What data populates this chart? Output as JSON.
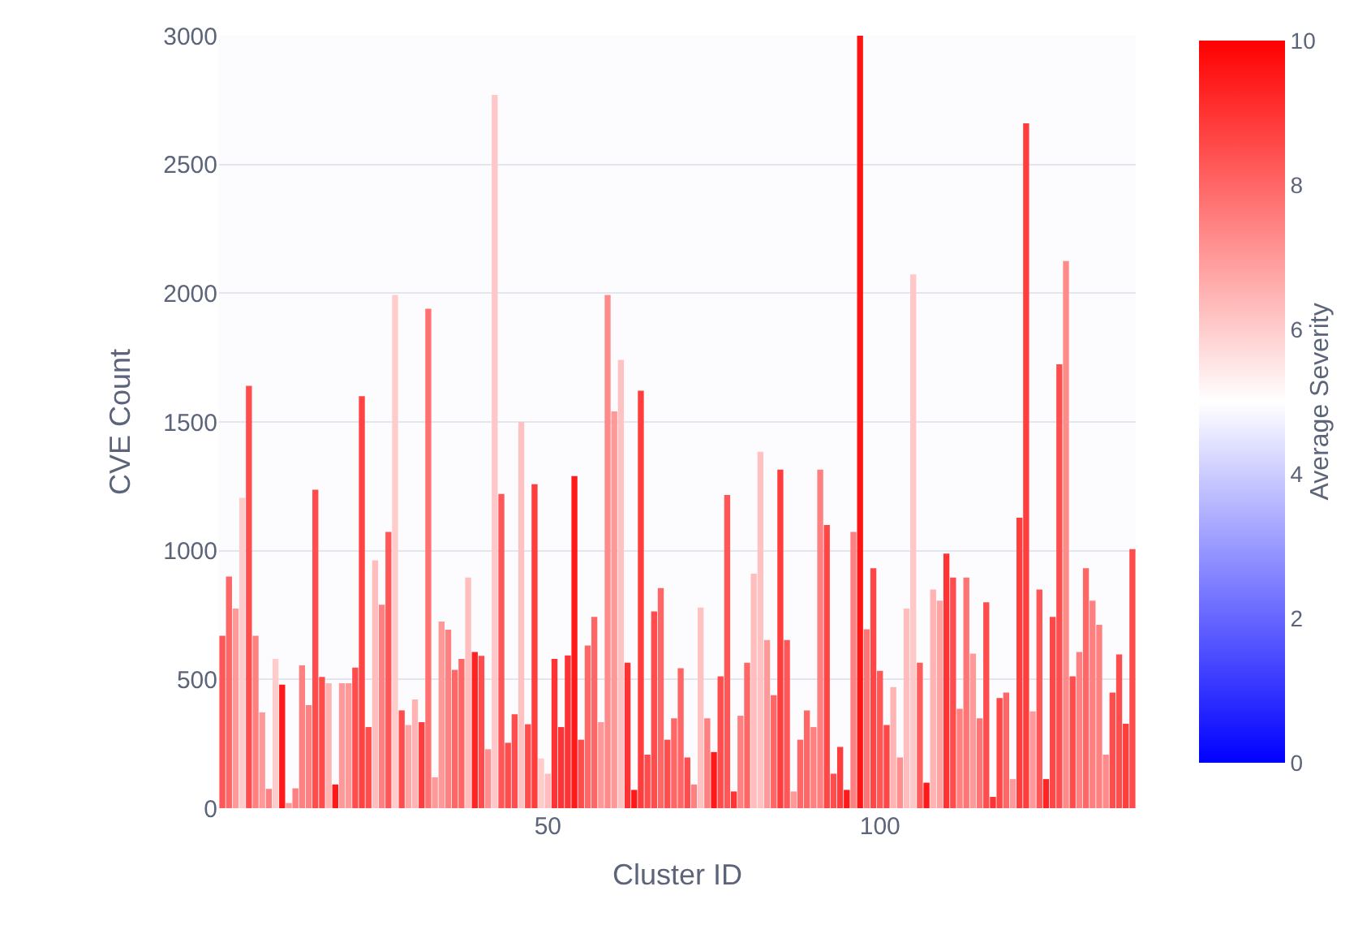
{
  "chart_data": {
    "type": "bar",
    "xlabel": "Cluster ID",
    "ylabel": "CVE Count",
    "clabel": "Average Severity",
    "x": [
      1,
      2,
      3,
      4,
      5,
      6,
      7,
      8,
      9,
      10,
      11,
      12,
      13,
      14,
      15,
      16,
      17,
      18,
      19,
      20,
      21,
      22,
      23,
      24,
      25,
      26,
      27,
      28,
      29,
      30,
      31,
      32,
      33,
      34,
      35,
      36,
      37,
      38,
      39,
      40,
      41,
      42,
      43,
      44,
      45,
      46,
      47,
      48,
      49,
      50,
      51,
      52,
      53,
      54,
      55,
      56,
      57,
      58,
      59,
      60,
      61,
      62,
      63,
      64,
      65,
      66,
      67,
      68,
      69,
      70,
      71,
      72,
      73,
      74,
      75,
      76,
      77,
      78,
      79,
      80,
      81,
      82,
      83,
      84,
      85,
      86,
      87,
      88,
      89,
      90,
      91,
      92,
      93,
      94,
      95,
      96,
      97,
      98,
      99,
      100,
      101,
      102,
      103,
      104,
      105,
      106,
      107,
      108,
      109,
      110,
      111,
      112,
      113,
      114,
      115,
      116,
      117,
      118,
      119,
      120,
      121,
      122,
      123,
      124,
      125,
      126,
      127,
      128,
      129,
      130,
      131,
      132,
      133,
      134,
      135,
      136,
      137,
      138
    ],
    "values": [
      670,
      900,
      775,
      1205,
      1640,
      670,
      372,
      75,
      580,
      480,
      20,
      77,
      555,
      400,
      1237,
      510,
      485,
      92,
      485,
      485,
      546,
      1600,
      315,
      963,
      790,
      1073,
      1993,
      380,
      323,
      422,
      334,
      1940,
      120,
      725,
      693,
      537,
      580,
      896,
      607,
      592,
      229,
      2770,
      1220,
      254,
      365,
      1500,
      326,
      1258,
      193,
      134,
      580,
      315,
      593,
      1290,
      266,
      632,
      743,
      334,
      1993,
      1541,
      1741,
      565,
      71,
      1621,
      208,
      764,
      855,
      266,
      349,
      544,
      197,
      92,
      779,
      349,
      218,
      512,
      1216,
      65,
      359,
      565,
      911,
      1384,
      653,
      439,
      1315,
      653,
      65,
      266,
      380,
      315,
      1315,
      1100,
      134,
      238,
      71,
      1073,
      3000,
      695,
      932,
      533,
      323,
      470,
      197,
      775,
      2073,
      565,
      99,
      849,
      806,
      989,
      896,
      386,
      896,
      600,
      349,
      800,
      44,
      428,
      449,
      113,
      1128,
      2660,
      376,
      849,
      113,
      743,
      1724,
      2125,
      512,
      607,
      932,
      806,
      712,
      208,
      449,
      597,
      328,
      1006
    ],
    "cvalues": [
      8.3,
      8,
      7,
      6,
      8.5,
      7.5,
      7,
      7.5,
      6,
      9.5,
      7,
      7.5,
      7.5,
      7.5,
      8.5,
      8.5,
      6.5,
      9.5,
      7,
      7,
      8.5,
      8.7,
      8.5,
      6.3,
      7.5,
      8.3,
      6,
      8.5,
      6.8,
      6.5,
      8.8,
      7.8,
      7,
      7,
      7.5,
      8,
      8,
      6.3,
      9.3,
      8.5,
      7.2,
      6.1,
      8.3,
      8.5,
      8.5,
      6.2,
      8.5,
      8.8,
      6,
      6.3,
      9,
      9,
      9,
      9.5,
      8.5,
      8,
      8,
      7,
      7.3,
      7,
      6.2,
      9,
      9.5,
      8.8,
      8.5,
      8.5,
      8,
      8.5,
      8,
      8,
      8.5,
      7.5,
      6.2,
      7.5,
      9.5,
      8.5,
      8.3,
      9,
      7.5,
      8,
      6.3,
      6.2,
      7,
      8,
      8.8,
      8.3,
      7,
      8,
      8,
      7.5,
      7.5,
      8.6,
      8.5,
      8.8,
      9.5,
      7.5,
      9.6,
      7.7,
      8.6,
      8.3,
      8.6,
      6.5,
      7.2,
      6.3,
      6.1,
      8.2,
      9.5,
      6.5,
      6.8,
      9,
      8.5,
      7.5,
      7.7,
      7,
      7.7,
      8.5,
      9,
      8.6,
      8,
      7,
      8.8,
      8.8,
      7,
      8.3,
      9.3,
      8.6,
      8.5,
      7.3,
      8.5,
      7.5,
      8,
      7.5,
      7.5,
      7.3,
      8.5,
      8.5,
      8.8,
      8.5
    ],
    "clim": [
      0,
      10
    ],
    "cticks": [
      0,
      2,
      4,
      6,
      8,
      10
    ],
    "xlim": [
      0.5,
      138.5
    ],
    "xticks": [
      50,
      100
    ],
    "ylim": [
      0,
      3000
    ],
    "yticks": [
      0,
      500,
      1000,
      1500,
      2000,
      2500,
      3000
    ],
    "grid": "y"
  }
}
